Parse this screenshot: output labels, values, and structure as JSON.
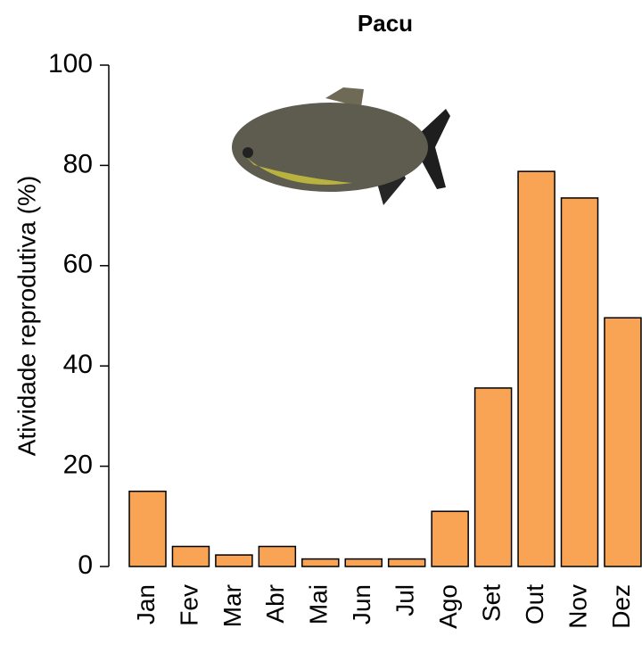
{
  "chart_data": {
    "type": "bar",
    "title": "Pacu",
    "y_label": "Atividade reprodutiva (%)",
    "categories": [
      "Jan",
      "Fev",
      "Mar",
      "Abr",
      "Mai",
      "Jun",
      "Jul",
      "Ago",
      "Set",
      "Out",
      "Nov",
      "Dez"
    ],
    "values": [
      15,
      4,
      2.3,
      4,
      1.5,
      1.5,
      1.5,
      11,
      35.6,
      78.8,
      73.5,
      49.6
    ],
    "color": "#f9a354",
    "ylim": [
      0,
      100
    ],
    "yticks": [
      0,
      20,
      40,
      60,
      80,
      100
    ],
    "grid": false
  }
}
